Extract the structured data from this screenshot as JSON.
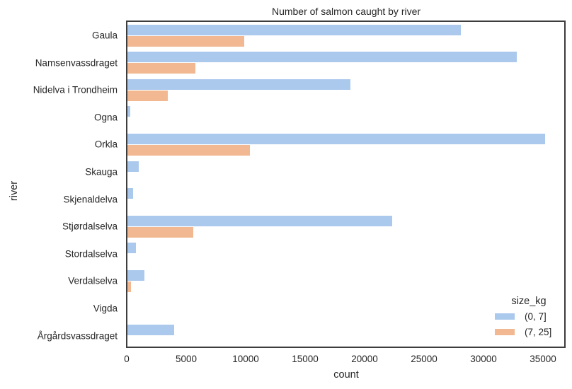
{
  "chart_data": {
    "type": "bar",
    "orientation": "horizontal",
    "title": "Number of salmon caught by river",
    "xlabel": "count",
    "ylabel": "river",
    "xlim": [
      0,
      36900
    ],
    "xticks": [
      0,
      5000,
      10000,
      15000,
      20000,
      25000,
      30000,
      35000
    ],
    "grid": false,
    "legend": {
      "title": "size_kg",
      "position": "lower right"
    },
    "categories": [
      "Gaula",
      "Namsenvassdraget",
      "Nidelva i Trondheim",
      "Ogna",
      "Orkla",
      "Skauga",
      "Skjenaldelva",
      "Stjørdalselva",
      "Stordalselva",
      "Verdalselva",
      "Vigda",
      "Årgårdsvassdraget"
    ],
    "series": [
      {
        "name": "(0, 7]",
        "color": "#a1c9f4",
        "values": [
          28050,
          32750,
          18750,
          240,
          35100,
          950,
          480,
          22250,
          710,
          1430,
          0,
          3930
        ]
      },
      {
        "name": "(7, 25]",
        "color": "#ffb482",
        "values": [
          9820,
          5700,
          3400,
          0,
          10300,
          0,
          0,
          5540,
          0,
          300,
          0,
          0
        ]
      }
    ]
  },
  "colors": {
    "series0": "#abc9ec",
    "series1": "#f1b891",
    "frame": "#3d3d3d"
  }
}
